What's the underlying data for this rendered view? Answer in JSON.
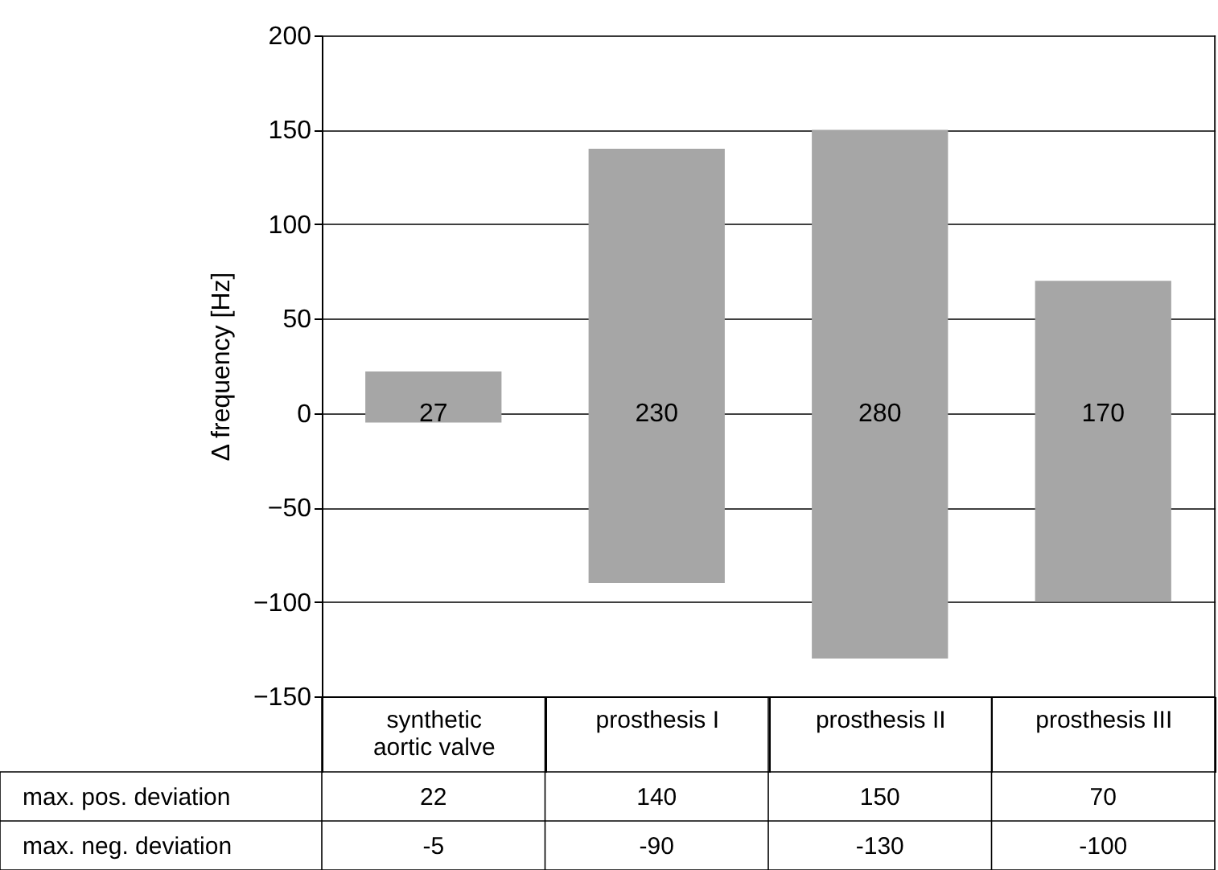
{
  "chart_data": {
    "type": "bar",
    "ylabel": "Δ frequency [Hz]",
    "categories": [
      "synthetic aortic valve",
      "prosthesis I",
      "prosthesis II",
      "prosthesis III"
    ],
    "base": [
      -5,
      -90,
      -130,
      -100
    ],
    "values": [
      27,
      230,
      280,
      170
    ],
    "color": "#a6a6a6",
    "data_labels": true,
    "ylim": [
      -150,
      200
    ],
    "yticks": [
      -150,
      -100,
      -50,
      0,
      50,
      100,
      150,
      200
    ],
    "grid": "y",
    "annotations": [
      "max. pos. deviation",
      "22",
      "140",
      "150",
      "70",
      "max. neg. deviation",
      "-5",
      "-90",
      "-130",
      "-100"
    ]
  }
}
